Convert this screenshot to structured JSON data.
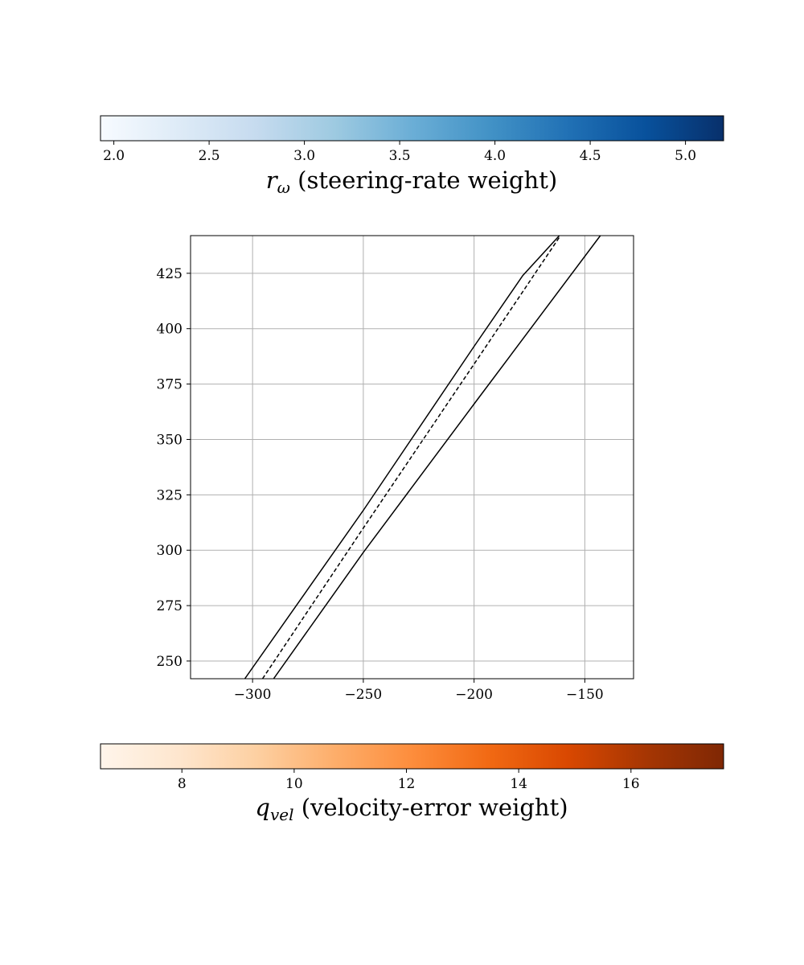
{
  "chart_data": [
    {
      "type": "line",
      "title": "",
      "xlabel": "",
      "ylabel": "",
      "xlim": [
        -328,
        -128
      ],
      "ylim": [
        242,
        442
      ],
      "x_ticks": [
        -300,
        -250,
        -200,
        -150
      ],
      "y_ticks": [
        250,
        275,
        300,
        325,
        350,
        375,
        400,
        425
      ],
      "grid": true,
      "series": [
        {
          "style": "solid",
          "color": "#000000",
          "points": [
            [
              -303.5,
              242
            ],
            [
              -250,
              318
            ],
            [
              -200,
              392
            ],
            [
              -178,
              424
            ],
            [
              -161.5,
              442
            ]
          ]
        },
        {
          "style": "dashed",
          "color": "#000000",
          "points": [
            [
              -295.5,
              242
            ],
            [
              -250,
              310
            ],
            [
              -200,
              384
            ],
            [
              -161,
              442
            ]
          ]
        },
        {
          "style": "solid",
          "color": "#000000",
          "points": [
            [
              -290.5,
              242
            ],
            [
              -250,
              299
            ],
            [
              -200,
              366
            ],
            [
              -143,
              442
            ]
          ]
        }
      ]
    }
  ],
  "colorbars": {
    "top": {
      "label_symbol": "r",
      "label_subscript": "ω",
      "label_text": " (steering-rate weight)",
      "range": [
        1.93,
        5.2
      ],
      "ticks": [
        "2.0",
        "2.5",
        "3.0",
        "3.5",
        "4.0",
        "4.5",
        "5.0"
      ],
      "tick_values": [
        2.0,
        2.5,
        3.0,
        3.5,
        4.0,
        4.5,
        5.0
      ],
      "colormap": "Blues",
      "colors": [
        "#f7fbff",
        "#deebf7",
        "#c6dbef",
        "#9ecae1",
        "#6baed6",
        "#4292c6",
        "#2171b5",
        "#08519c",
        "#08306b"
      ]
    },
    "bottom": {
      "label_symbol": "q",
      "label_subscript": "vel",
      "label_text": " (velocity-error weight)",
      "range": [
        6.55,
        17.65
      ],
      "ticks": [
        "8",
        "10",
        "12",
        "14",
        "16"
      ],
      "tick_values": [
        8,
        10,
        12,
        14,
        16
      ],
      "colormap": "Oranges",
      "colors": [
        "#fff5eb",
        "#fee6ce",
        "#fdd0a2",
        "#fdae6b",
        "#fd8d3c",
        "#f16913",
        "#d94801",
        "#a63603",
        "#7f2704"
      ]
    }
  }
}
